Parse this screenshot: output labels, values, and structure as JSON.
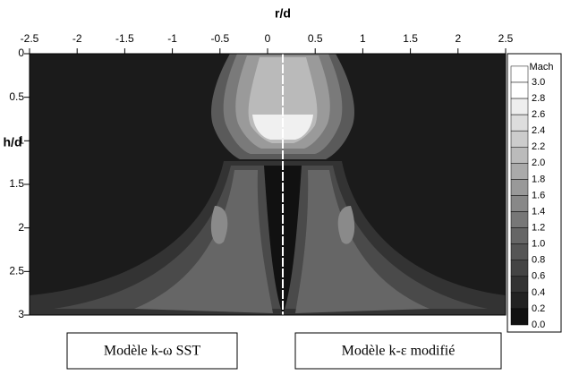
{
  "chart_data": {
    "type": "contour",
    "x_label": "r/d",
    "y_label": "h/d",
    "xlim": [
      -2.5,
      2.5
    ],
    "xticks": [
      -2.5,
      -2,
      -1.5,
      -1,
      -0.5,
      0,
      0.5,
      1,
      1.5,
      2,
      2.5
    ],
    "ylim": [
      0,
      3
    ],
    "yticks": [
      0,
      0.5,
      1,
      1.5,
      2,
      2.5,
      3
    ],
    "y_inverted": true,
    "colorbar": {
      "title": "Mach",
      "levels": [
        {
          "value": 3.0,
          "label": "3.0"
        },
        {
          "value": 2.8,
          "label": "2.8"
        },
        {
          "value": 2.6,
          "label": "2.6"
        },
        {
          "value": 2.4,
          "label": "2.4"
        },
        {
          "value": 2.2,
          "label": "2.2"
        },
        {
          "value": 2.0,
          "label": "2.0"
        },
        {
          "value": 1.8,
          "label": "1.8"
        },
        {
          "value": 1.6,
          "label": "1.6"
        },
        {
          "value": 1.4,
          "label": "1.4"
        },
        {
          "value": 1.2,
          "label": "1.2"
        },
        {
          "value": 1.0,
          "label": "1.0"
        },
        {
          "value": 0.8,
          "label": "0.8"
        },
        {
          "value": 0.6,
          "label": "0.6"
        },
        {
          "value": 0.4,
          "label": "0.4"
        },
        {
          "value": 0.2,
          "label": "0.2"
        },
        {
          "value": 0.0,
          "label": "0.0"
        }
      ]
    },
    "annotations": [
      "Modèle k-ω SST",
      "Modèle k-ε modifié"
    ]
  }
}
